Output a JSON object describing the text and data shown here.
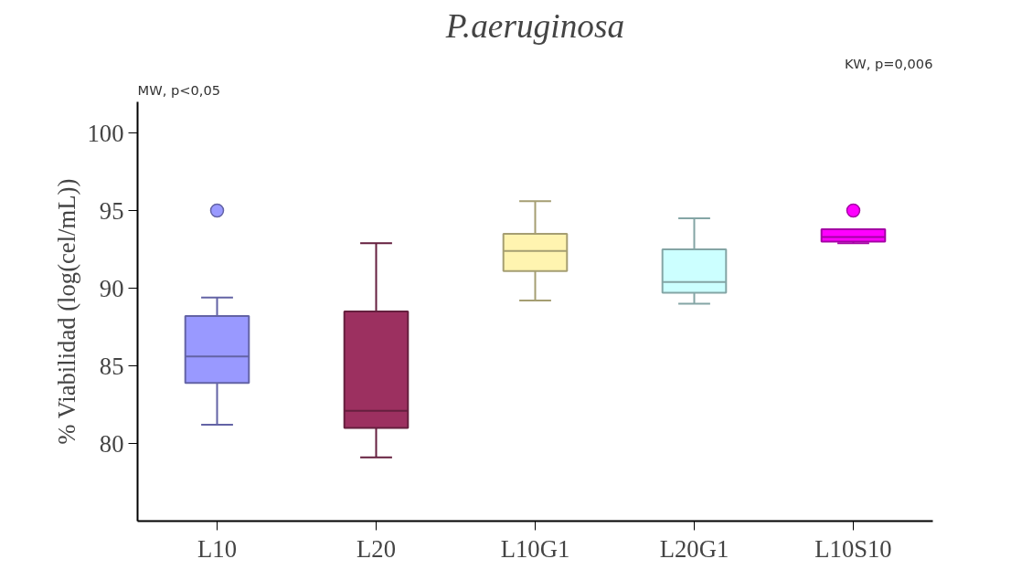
{
  "chart_data": {
    "type": "box",
    "title": "P.aeruginosa",
    "ylabel": "% Viabilidad (log(cel/mL))",
    "categories": [
      "L10",
      "L20",
      "L10G1",
      "L20G1",
      "L10S10"
    ],
    "ylim": [
      75,
      102
    ],
    "yticks": [
      80,
      85,
      90,
      95,
      100
    ],
    "grid": false,
    "annotations": [
      "MW, p<0,05",
      "KW, p=0,006"
    ],
    "colors": [
      "#9999ff",
      "#9c3060",
      "#fff4b0",
      "#ccffff",
      "#ff00ff"
    ],
    "boxes": [
      {
        "low": 81.2,
        "q1": 83.9,
        "median": 85.6,
        "q3": 88.2,
        "high": 89.4,
        "outliers": [
          95.0
        ]
      },
      {
        "low": 79.1,
        "q1": 81.0,
        "median": 82.1,
        "q3": 88.5,
        "high": 92.9
      },
      {
        "low": 89.2,
        "q1": 91.1,
        "median": 92.4,
        "q3": 93.5,
        "high": 95.6
      },
      {
        "low": 89.0,
        "q1": 89.7,
        "median": 90.4,
        "q3": 92.5,
        "high": 94.5
      },
      {
        "low": 92.9,
        "q1": 93.0,
        "median": 93.3,
        "q3": 93.8,
        "high": 93.8,
        "outliers": [
          95.0
        ]
      }
    ]
  }
}
